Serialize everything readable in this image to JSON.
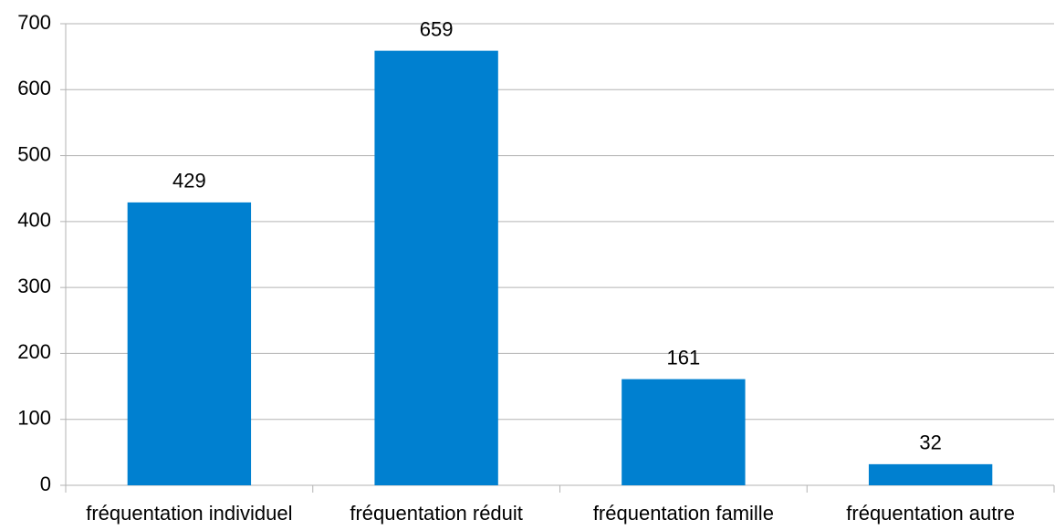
{
  "chart_data": {
    "type": "bar",
    "categories": [
      "fréquentation individuel",
      "fréquentation réduit",
      "fréquentation famille",
      "fréquentation autre"
    ],
    "values": [
      429,
      659,
      161,
      32
    ],
    "color": "#0080d0",
    "ylim": [
      0,
      700
    ],
    "yticks": [
      0,
      100,
      200,
      300,
      400,
      500,
      600,
      700
    ],
    "grid": true
  }
}
